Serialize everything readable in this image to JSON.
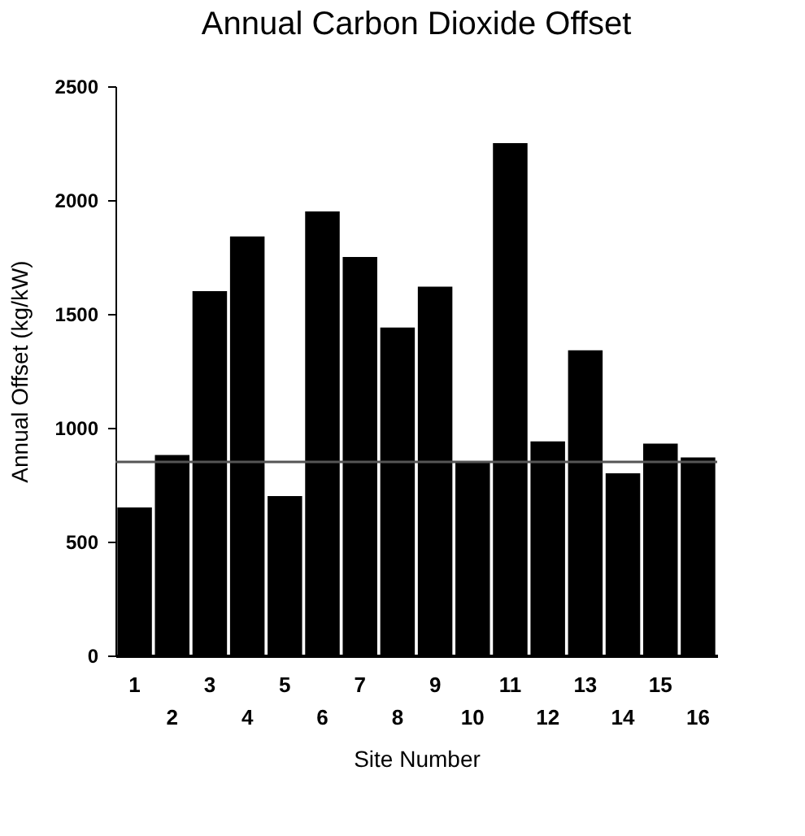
{
  "chart_data": {
    "type": "bar",
    "title": "Annual Carbon Dioxide  Offset",
    "xlabel": "Site Number",
    "ylabel": "Annual Offset (kg/kW)",
    "categories": [
      "1",
      "2",
      "3",
      "4",
      "5",
      "6",
      "7",
      "8",
      "9",
      "10",
      "11",
      "12",
      "13",
      "14",
      "15",
      "16"
    ],
    "values": [
      650,
      880,
      1600,
      1840,
      700,
      1950,
      1750,
      1440,
      1620,
      850,
      2250,
      940,
      1340,
      800,
      930,
      870
    ],
    "color": "#000000",
    "ylim": [
      0,
      2500
    ],
    "yticks": [
      0,
      500,
      1000,
      1500,
      2000,
      2500
    ],
    "grid": false,
    "ref_lines": [
      {
        "axis": "y",
        "value": 850,
        "color": "#555555"
      }
    ]
  }
}
